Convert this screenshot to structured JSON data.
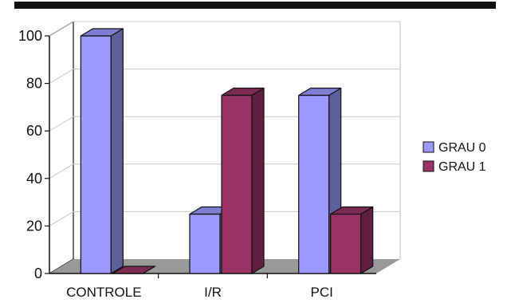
{
  "chart_data": {
    "type": "bar",
    "categories": [
      "CONTROLE",
      "I/R",
      "PCI"
    ],
    "series": [
      {
        "name": "GRAU 0",
        "values": [
          100,
          25,
          75
        ],
        "color": "#9999ff"
      },
      {
        "name": "GRAU 1",
        "values": [
          0,
          75,
          25
        ],
        "color": "#993366"
      }
    ],
    "yticks": [
      0,
      20,
      40,
      60,
      80,
      100
    ],
    "ylim": [
      0,
      100
    ],
    "title": "",
    "xlabel": "",
    "ylabel": "",
    "grid": true,
    "three_d": true,
    "legend_position": "right"
  }
}
